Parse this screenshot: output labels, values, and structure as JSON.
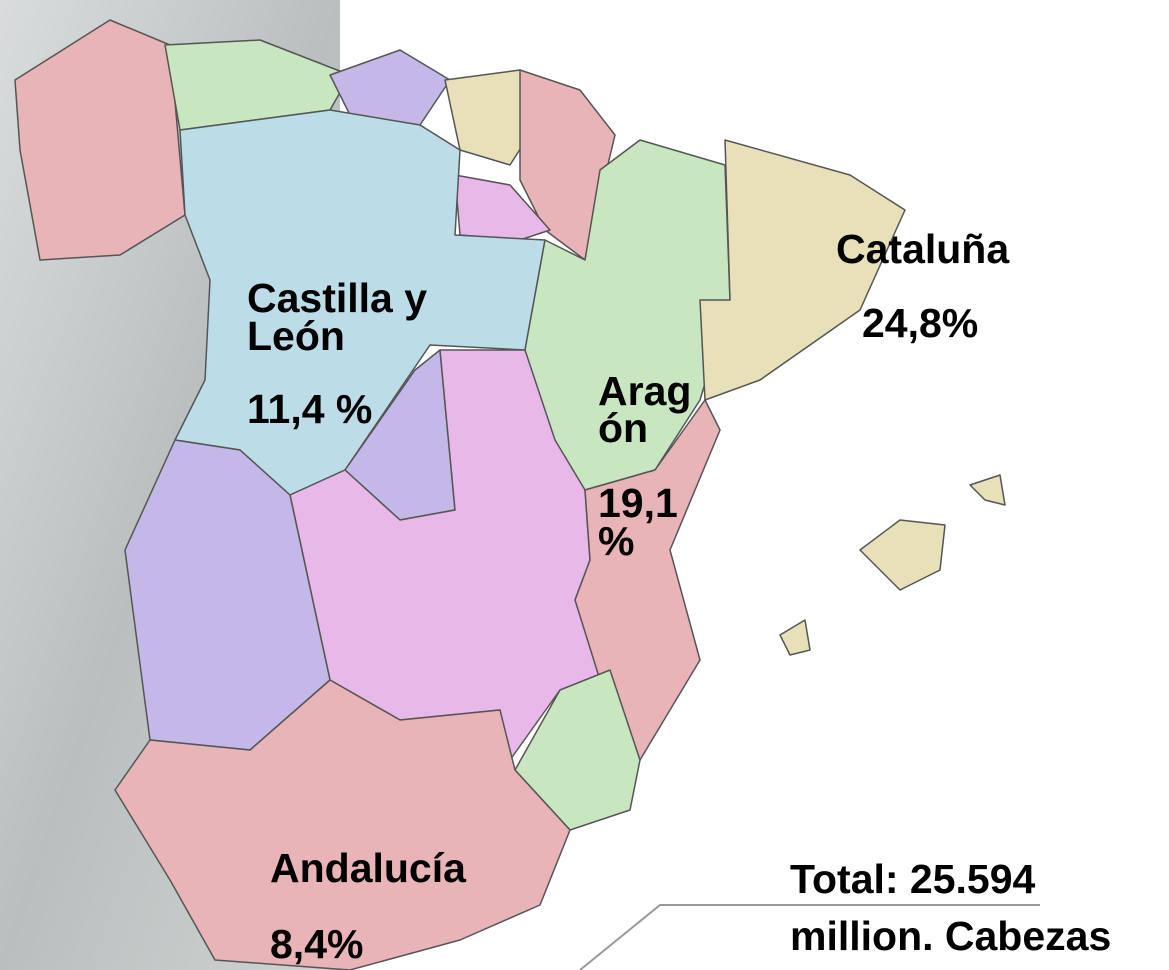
{
  "regions": [
    {
      "name_lines": [
        "Castilla y",
        "León"
      ],
      "share_lines": [
        "11,4 %"
      ]
    },
    {
      "name_lines": [
        "Cataluña"
      ],
      "share_lines": [
        "24,8%"
      ]
    },
    {
      "name_lines": [
        "Arag",
        "ón"
      ],
      "share_lines": [
        "19,1",
        "%"
      ]
    },
    {
      "name_lines": [
        "Andalucía"
      ],
      "share_lines": [
        "8,4%"
      ]
    }
  ],
  "total": {
    "lines": [
      "Total: 25.594",
      "million. Cabezas"
    ]
  }
}
